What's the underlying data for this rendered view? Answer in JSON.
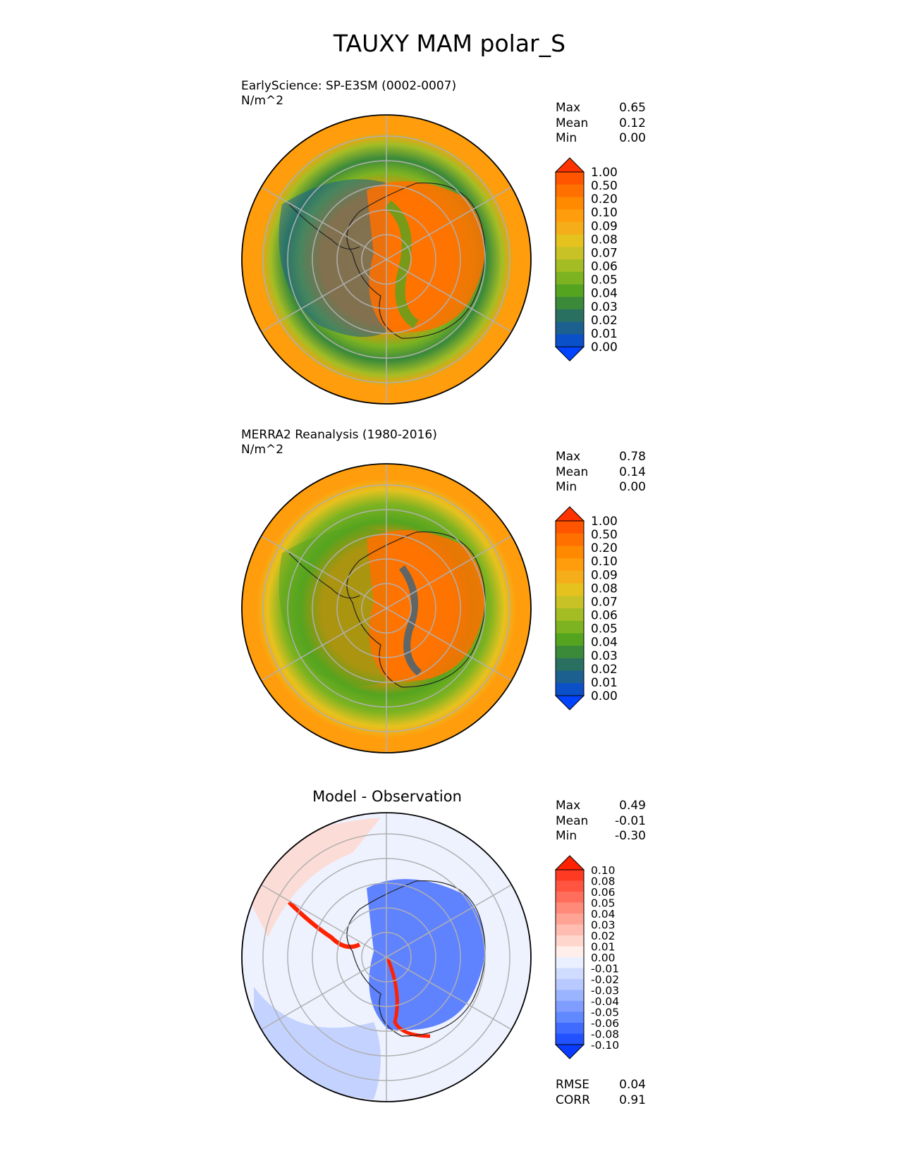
{
  "figure": {
    "title": "TAUXY MAM polar_S"
  },
  "panels": [
    {
      "title_line1": "EarlyScience: SP-E3SM (0002-0007)",
      "title_line2": "N/m^2",
      "stats": [
        {
          "label": "Max",
          "value": "0.65"
        },
        {
          "label": "Mean",
          "value": "0.12"
        },
        {
          "label": "Min",
          "value": "0.00"
        }
      ],
      "colorbar": {
        "levels": [
          "1.00",
          "0.50",
          "0.20",
          "0.10",
          "0.09",
          "0.08",
          "0.07",
          "0.06",
          "0.05",
          "0.04",
          "0.03",
          "0.02",
          "0.01",
          "0.00"
        ],
        "colors": [
          "#ff3300",
          "#ff5500",
          "#ff7000",
          "#ff8a00",
          "#ff9d0d",
          "#f5ad1a",
          "#e6c21f",
          "#c8c226",
          "#a4bd25",
          "#7db321",
          "#55a41f",
          "#3a8a3a",
          "#2a7060",
          "#1c6090",
          "#0a50c8",
          "#0044ff"
        ]
      }
    },
    {
      "title_line1": "MERRA2 Reanalysis (1980-2016)",
      "title_line2": "N/m^2",
      "stats": [
        {
          "label": "Max",
          "value": "0.78"
        },
        {
          "label": "Mean",
          "value": "0.14"
        },
        {
          "label": "Min",
          "value": "0.00"
        }
      ],
      "colorbar": {
        "levels": [
          "1.00",
          "0.50",
          "0.20",
          "0.10",
          "0.09",
          "0.08",
          "0.07",
          "0.06",
          "0.05",
          "0.04",
          "0.03",
          "0.02",
          "0.01",
          "0.00"
        ],
        "colors": [
          "#ff3300",
          "#ff5500",
          "#ff7000",
          "#ff8a00",
          "#ff9d0d",
          "#f5ad1a",
          "#e6c21f",
          "#c8c226",
          "#a4bd25",
          "#7db321",
          "#55a41f",
          "#3a8a3a",
          "#2a7060",
          "#1c6090",
          "#0a50c8",
          "#0044ff"
        ]
      }
    },
    {
      "title": "Model - Observation",
      "stats": [
        {
          "label": "Max",
          "value": "0.49"
        },
        {
          "label": "Mean",
          "value": "-0.01"
        },
        {
          "label": "Min",
          "value": "-0.30"
        }
      ],
      "metrics": [
        {
          "label": "RMSE",
          "value": "0.04"
        },
        {
          "label": "CORR",
          "value": "0.91"
        }
      ],
      "colorbar": {
        "levels": [
          "0.10",
          "0.08",
          "0.06",
          "0.05",
          "0.04",
          "0.03",
          "0.02",
          "0.01",
          "0.00",
          "-0.01",
          "-0.02",
          "-0.03",
          "-0.04",
          "-0.05",
          "-0.06",
          "-0.08",
          "-0.10"
        ],
        "colors": [
          "#ff2200",
          "#ff3a22",
          "#ff5540",
          "#ff6e5c",
          "#ff8a7a",
          "#ffa395",
          "#ffbcb0",
          "#ffd6cc",
          "#ffeeea",
          "#eaf0ff",
          "#cfdcff",
          "#b8c9ff",
          "#9bb4ff",
          "#7f9cff",
          "#6088ff",
          "#3f6cff",
          "#2252ff",
          "#0a3cff"
        ]
      }
    }
  ],
  "chart_data": [
    {
      "type": "heatmap",
      "projection": "south polar stereographic",
      "title": "EarlyScience: SP-E3SM (0002-0007)",
      "units": "N/m^2",
      "stats": {
        "max": 0.65,
        "mean": 0.12,
        "min": 0.0
      },
      "colorbar_levels": [
        0.0,
        0.01,
        0.02,
        0.03,
        0.04,
        0.05,
        0.06,
        0.07,
        0.08,
        0.09,
        0.1,
        0.2,
        0.5,
        1.0
      ],
      "extend": "both"
    },
    {
      "type": "heatmap",
      "projection": "south polar stereographic",
      "title": "MERRA2 Reanalysis (1980-2016)",
      "units": "N/m^2",
      "stats": {
        "max": 0.78,
        "mean": 0.14,
        "min": 0.0
      },
      "colorbar_levels": [
        0.0,
        0.01,
        0.02,
        0.03,
        0.04,
        0.05,
        0.06,
        0.07,
        0.08,
        0.09,
        0.1,
        0.2,
        0.5,
        1.0
      ],
      "extend": "both"
    },
    {
      "type": "heatmap",
      "projection": "south polar stereographic",
      "title": "Model - Observation",
      "stats": {
        "max": 0.49,
        "mean": -0.01,
        "min": -0.3
      },
      "metrics": {
        "rmse": 0.04,
        "corr": 0.91
      },
      "colorbar_levels": [
        -0.1,
        -0.08,
        -0.06,
        -0.05,
        -0.04,
        -0.03,
        -0.02,
        -0.01,
        0.0,
        0.01,
        0.02,
        0.03,
        0.04,
        0.05,
        0.06,
        0.08,
        0.1
      ],
      "extend": "both"
    }
  ]
}
